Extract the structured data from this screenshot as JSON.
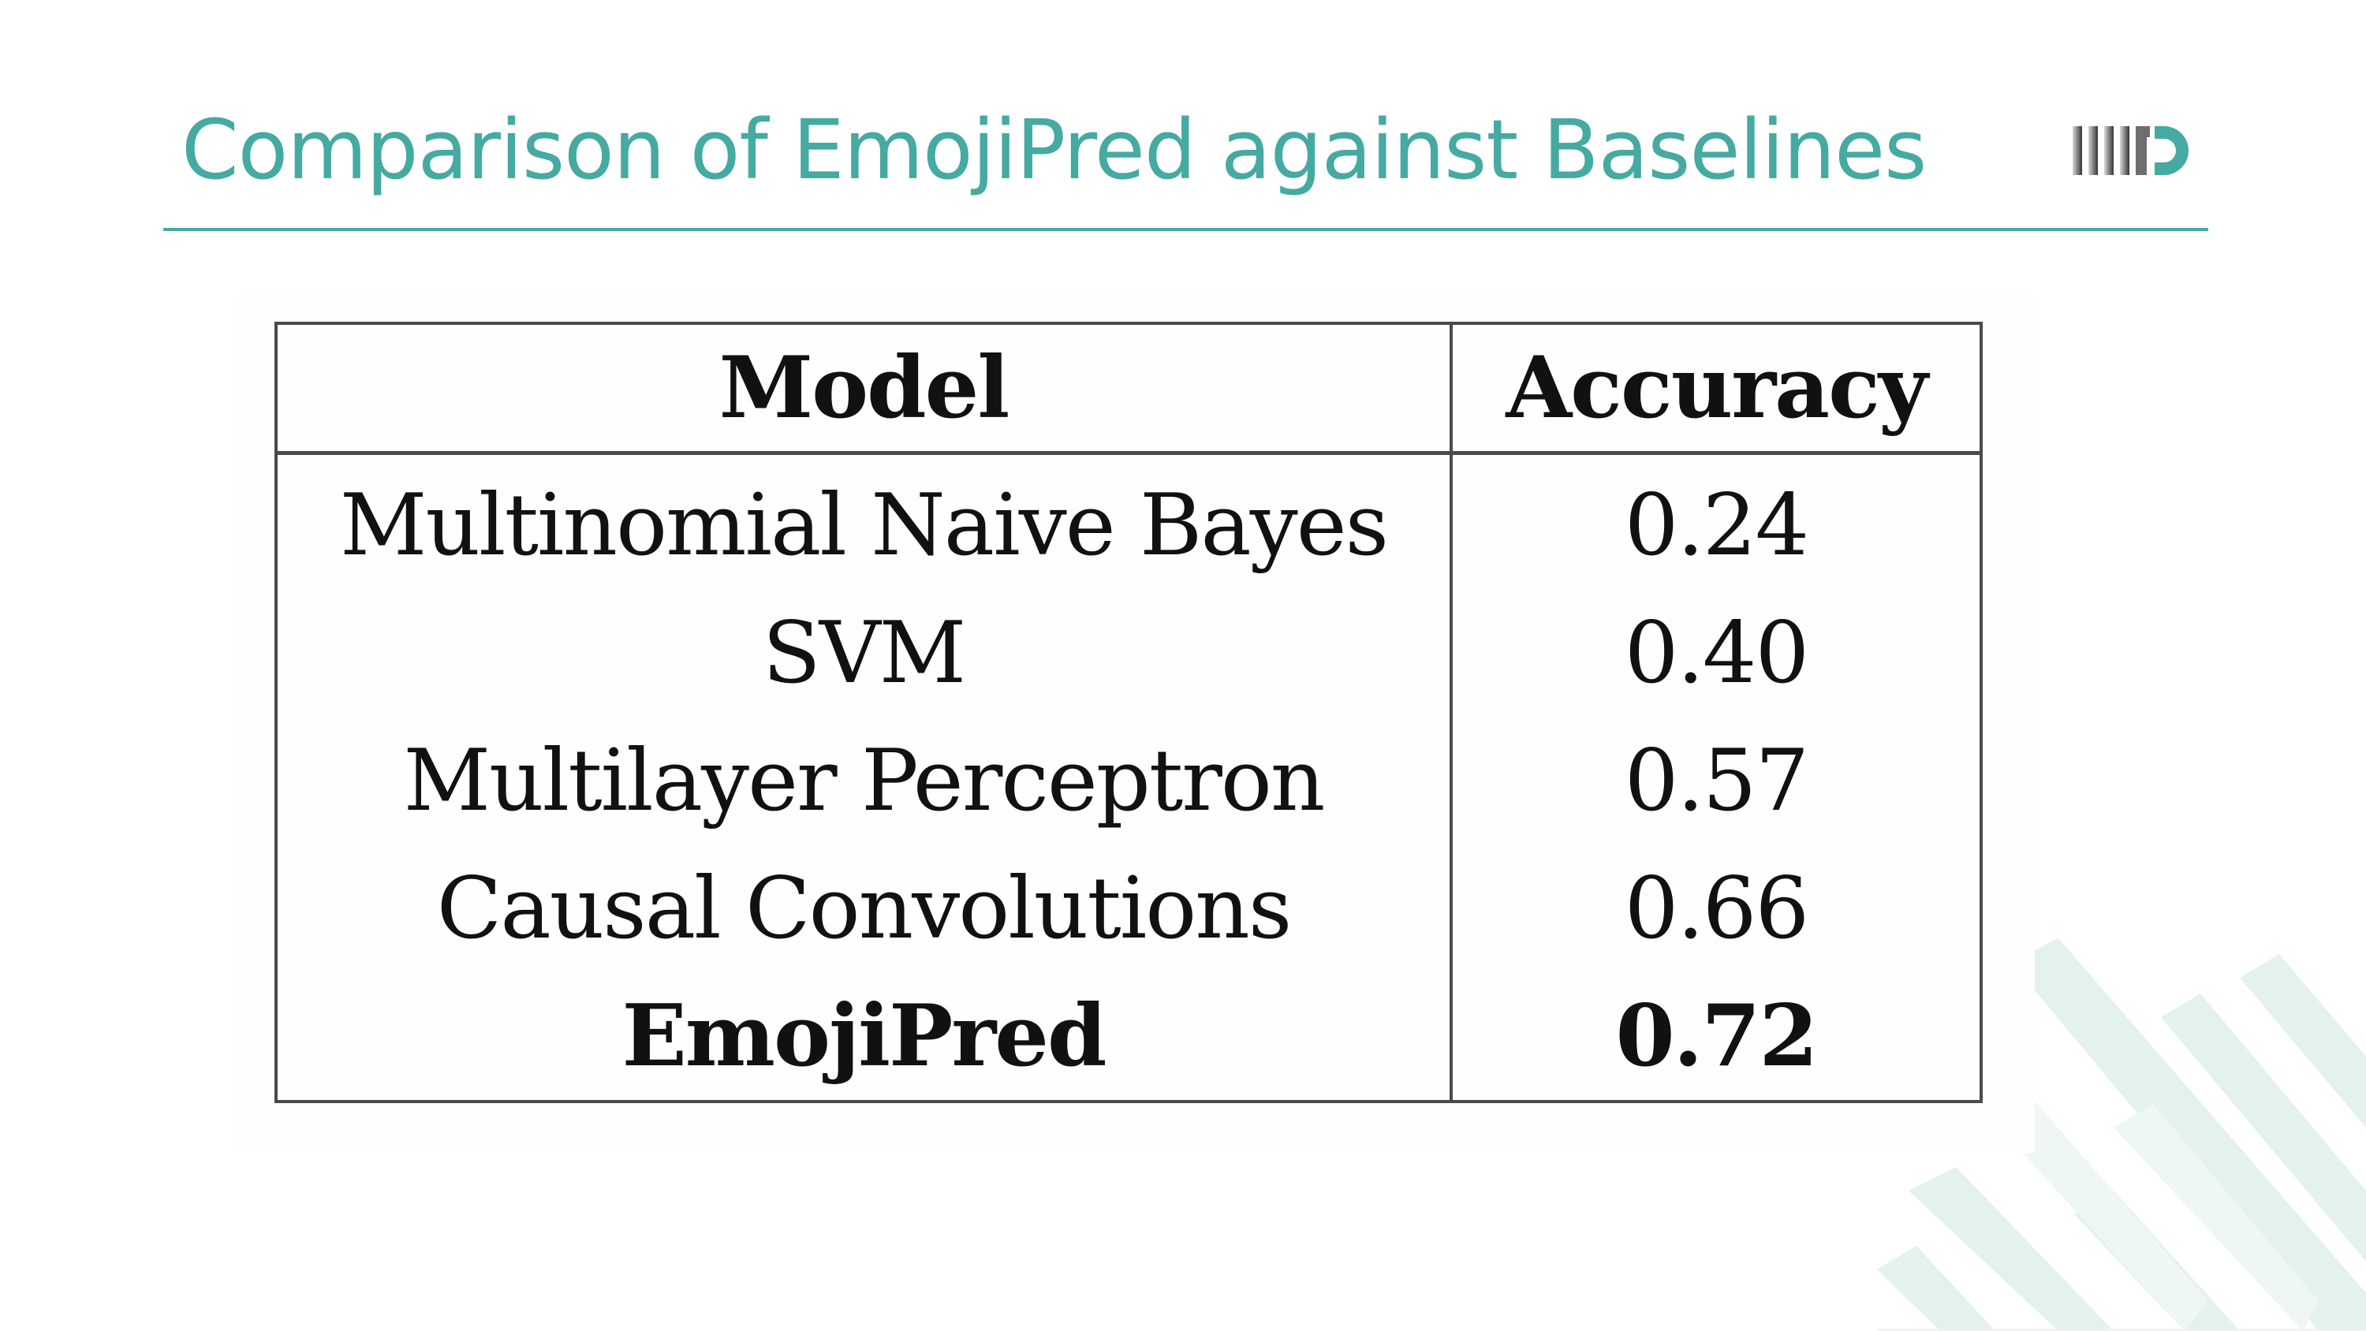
{
  "slide": {
    "title": "Comparison of EmojiPred against Baselines",
    "logo_icon": "iiitd-logo-icon",
    "accent_color": "#45aaa1"
  },
  "table": {
    "headers": [
      "Model",
      "Accuracy"
    ],
    "rows": [
      {
        "model": "Multinomial Naive Bayes",
        "accuracy": "0.24",
        "bold": false
      },
      {
        "model": "SVM",
        "accuracy": "0.40",
        "bold": false
      },
      {
        "model": "Multilayer Perceptron",
        "accuracy": "0.57",
        "bold": false
      },
      {
        "model": "Causal Convolutions",
        "accuracy": "0.66",
        "bold": false
      },
      {
        "model": "EmojiPred",
        "accuracy": "0.72",
        "bold": true
      }
    ]
  }
}
